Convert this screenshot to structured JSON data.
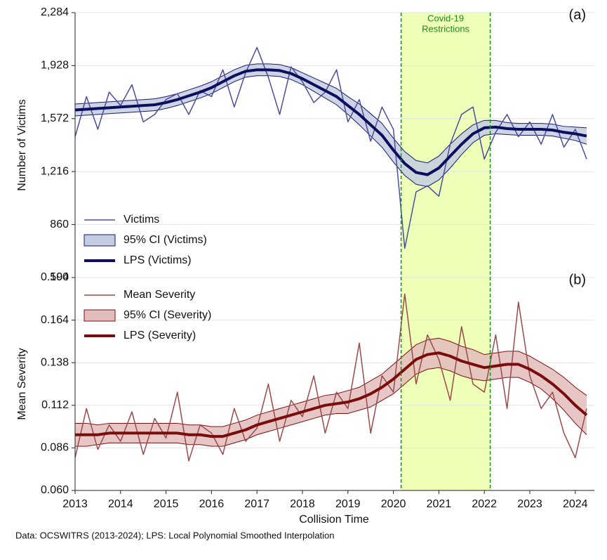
{
  "chart_data": [
    {
      "type": "line",
      "panel": "(a)",
      "ylabel": "Number of Victims",
      "xlim": [
        2013,
        2024.42
      ],
      "ylim": [
        504,
        2284
      ],
      "yticks": [
        {
          "value": 504,
          "label": "504"
        },
        860,
        {
          "value": 1216,
          "label": "1,216"
        },
        {
          "value": 1572,
          "label": "1,572"
        },
        {
          "value": 1928,
          "label": "1,928"
        },
        {
          "value": 2284,
          "label": "2,284"
        }
      ],
      "grid": true,
      "shade": {
        "x": [
          2020.17,
          2022.13
        ],
        "label": [
          "Covid-19",
          "Restrictions"
        ],
        "color": "#eeffb8",
        "line_color": "#1e8a1e"
      },
      "x": [
        2013,
        2013.25,
        2013.5,
        2013.75,
        2014,
        2014.25,
        2014.5,
        2014.75,
        2015,
        2015.25,
        2015.5,
        2015.75,
        2016,
        2016.25,
        2016.5,
        2016.75,
        2017,
        2017.25,
        2017.5,
        2017.75,
        2018,
        2018.25,
        2018.5,
        2018.75,
        2019,
        2019.25,
        2019.5,
        2019.75,
        2020,
        2020.25,
        2020.5,
        2020.75,
        2021,
        2021.25,
        2021.5,
        2021.75,
        2022,
        2022.25,
        2022.5,
        2022.75,
        2023,
        2023.25,
        2023.5,
        2023.75,
        2024,
        2024.25
      ],
      "series": [
        {
          "name": "Victims",
          "color": "#4a4e9a",
          "width": 1.5,
          "values": [
            1450,
            1720,
            1500,
            1750,
            1660,
            1800,
            1550,
            1600,
            1700,
            1740,
            1600,
            1760,
            1720,
            1900,
            1650,
            1880,
            2050,
            1850,
            1600,
            1920,
            1820,
            1680,
            1750,
            1900,
            1550,
            1700,
            1420,
            1650,
            1500,
            700,
            1080,
            1120,
            1050,
            1400,
            1600,
            1650,
            1300,
            1480,
            1600,
            1450,
            1550,
            1400,
            1600,
            1380,
            1500,
            1300
          ]
        },
        {
          "name": "LPS (Victims)",
          "color": "#0d0d5e",
          "width": 4,
          "values": [
            1630,
            1635,
            1640,
            1645,
            1650,
            1655,
            1660,
            1665,
            1680,
            1700,
            1725,
            1750,
            1780,
            1820,
            1860,
            1890,
            1900,
            1900,
            1895,
            1875,
            1840,
            1800,
            1760,
            1720,
            1660,
            1600,
            1530,
            1460,
            1360,
            1270,
            1210,
            1195,
            1240,
            1320,
            1400,
            1470,
            1510,
            1515,
            1505,
            1500,
            1500,
            1500,
            1495,
            1480,
            1470,
            1455
          ]
        }
      ],
      "ci": {
        "name": "95% CI (Victims)",
        "color": "#c3cce0",
        "line_color": "#1a1a6a",
        "lower": [
          1590,
          1595,
          1600,
          1605,
          1610,
          1615,
          1620,
          1625,
          1640,
          1660,
          1685,
          1710,
          1740,
          1780,
          1820,
          1850,
          1860,
          1860,
          1855,
          1835,
          1800,
          1755,
          1710,
          1665,
          1600,
          1530,
          1455,
          1380,
          1280,
          1190,
          1130,
          1115,
          1160,
          1240,
          1330,
          1410,
          1460,
          1470,
          1465,
          1460,
          1460,
          1460,
          1455,
          1440,
          1425,
          1400
        ],
        "upper": [
          1670,
          1675,
          1680,
          1685,
          1690,
          1695,
          1700,
          1705,
          1720,
          1740,
          1765,
          1790,
          1820,
          1860,
          1900,
          1930,
          1940,
          1940,
          1935,
          1915,
          1880,
          1845,
          1810,
          1775,
          1720,
          1670,
          1605,
          1540,
          1440,
          1350,
          1290,
          1275,
          1320,
          1400,
          1470,
          1530,
          1560,
          1560,
          1545,
          1540,
          1540,
          1540,
          1535,
          1520,
          1515,
          1510
        ]
      }
    },
    {
      "type": "line",
      "panel": "(b)",
      "ylabel": "Mean Severity",
      "xlabel": "Collision Time",
      "xlim": [
        2013,
        2024.42
      ],
      "ylim": [
        0.06,
        0.19
      ],
      "xticks": [
        2013,
        2014,
        2015,
        2016,
        2017,
        2018,
        2019,
        2020,
        2021,
        2022,
        2023,
        2024
      ],
      "yticks": [
        {
          "value": 0.06,
          "label": "0.060"
        },
        0.086,
        0.112,
        0.138,
        0.164,
        {
          "value": 0.19,
          "label": "0.190"
        }
      ],
      "grid": true,
      "x": [
        2013,
        2013.25,
        2013.5,
        2013.75,
        2014,
        2014.25,
        2014.5,
        2014.75,
        2015,
        2015.25,
        2015.5,
        2015.75,
        2016,
        2016.25,
        2016.5,
        2016.75,
        2017,
        2017.25,
        2017.5,
        2017.75,
        2018,
        2018.25,
        2018.5,
        2018.75,
        2019,
        2019.25,
        2019.5,
        2019.75,
        2020,
        2020.25,
        2020.5,
        2020.75,
        2021,
        2021.25,
        2021.5,
        2021.75,
        2022,
        2022.25,
        2022.5,
        2022.75,
        2023,
        2023.25,
        2023.5,
        2023.75,
        2024,
        2024.25
      ],
      "series": [
        {
          "name": "Mean Severity",
          "color": "#9a4a4a",
          "width": 1.5,
          "values": [
            0.08,
            0.11,
            0.085,
            0.1,
            0.09,
            0.108,
            0.082,
            0.104,
            0.092,
            0.12,
            0.078,
            0.1,
            0.095,
            0.082,
            0.11,
            0.09,
            0.098,
            0.125,
            0.09,
            0.115,
            0.105,
            0.13,
            0.095,
            0.12,
            0.11,
            0.15,
            0.095,
            0.13,
            0.12,
            0.18,
            0.125,
            0.155,
            0.14,
            0.115,
            0.16,
            0.125,
            0.12,
            0.155,
            0.11,
            0.175,
            0.13,
            0.11,
            0.12,
            0.095,
            0.08,
            0.11
          ]
        },
        {
          "name": "LPS (Severity)",
          "color": "#7a0c0c",
          "width": 4,
          "values": [
            0.094,
            0.094,
            0.094,
            0.095,
            0.095,
            0.095,
            0.095,
            0.095,
            0.095,
            0.095,
            0.094,
            0.094,
            0.093,
            0.093,
            0.095,
            0.097,
            0.1,
            0.102,
            0.104,
            0.106,
            0.108,
            0.11,
            0.112,
            0.113,
            0.114,
            0.116,
            0.119,
            0.123,
            0.128,
            0.134,
            0.14,
            0.143,
            0.144,
            0.142,
            0.139,
            0.137,
            0.135,
            0.136,
            0.137,
            0.137,
            0.134,
            0.13,
            0.125,
            0.119,
            0.112,
            0.106
          ]
        }
      ],
      "ci": {
        "name": "95% CI (Severity)",
        "color": "#e3bcbc",
        "line_color": "#7a1010",
        "lower": [
          0.087,
          0.087,
          0.088,
          0.089,
          0.089,
          0.089,
          0.089,
          0.089,
          0.089,
          0.089,
          0.088,
          0.088,
          0.087,
          0.087,
          0.089,
          0.091,
          0.094,
          0.096,
          0.098,
          0.1,
          0.102,
          0.104,
          0.106,
          0.107,
          0.107,
          0.109,
          0.111,
          0.115,
          0.119,
          0.125,
          0.131,
          0.134,
          0.135,
          0.133,
          0.13,
          0.128,
          0.127,
          0.128,
          0.129,
          0.129,
          0.126,
          0.122,
          0.116,
          0.109,
          0.101,
          0.094
        ],
        "upper": [
          0.101,
          0.101,
          0.1,
          0.101,
          0.101,
          0.101,
          0.101,
          0.101,
          0.101,
          0.101,
          0.1,
          0.1,
          0.099,
          0.099,
          0.101,
          0.103,
          0.106,
          0.108,
          0.11,
          0.112,
          0.114,
          0.116,
          0.118,
          0.119,
          0.121,
          0.123,
          0.127,
          0.131,
          0.137,
          0.143,
          0.149,
          0.152,
          0.153,
          0.151,
          0.148,
          0.146,
          0.143,
          0.144,
          0.145,
          0.145,
          0.142,
          0.138,
          0.134,
          0.129,
          0.123,
          0.118
        ]
      }
    }
  ],
  "note": "Data: OCSWITRS (2013-2024); LPS: Local Polynomial Smoothed Interpolation"
}
